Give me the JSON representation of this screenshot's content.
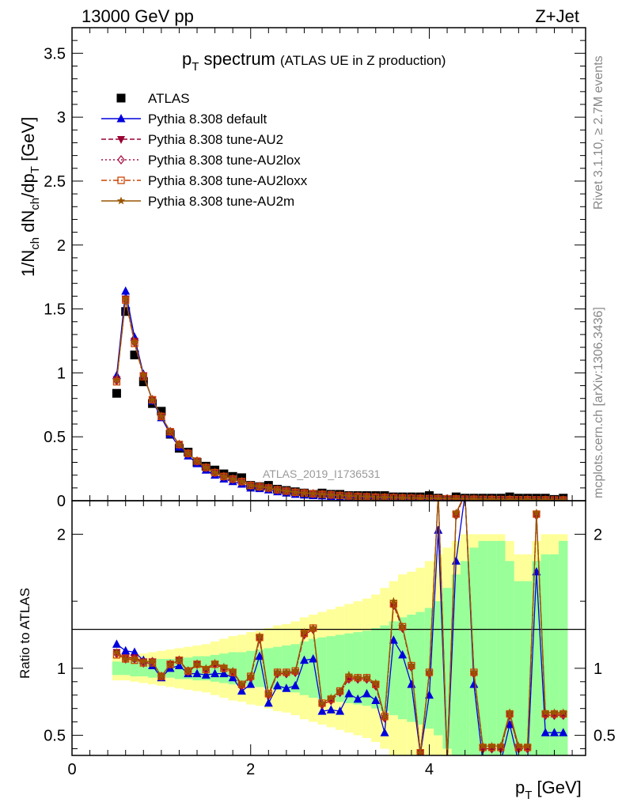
{
  "header": {
    "energy_label": "13000 GeV pp",
    "process_label": "Z+Jet"
  },
  "side_labels": {
    "rivet": "Rivet 3.1.10, ≥ 2.7M events",
    "mcplots": "mcplots.cern.ch [arXiv:1306.3436]"
  },
  "title": {
    "main": "p",
    "main_sub": "T",
    "main_rest": " spectrum",
    "note": "(ATLAS UE in Z production)"
  },
  "analysis_label": "ATLAS_2019_I1736531",
  "axes": {
    "y_top_label": "1/N_ch dN_ch/dp_T [GeV]",
    "y_bottom_label": "Ratio to ATLAS",
    "x_label": "p_T [GeV]"
  },
  "legend": [
    {
      "label": "ATLAS",
      "color": "#000000",
      "marker": "square",
      "dash": "none"
    },
    {
      "label": "Pythia 8.308 default",
      "color": "#0000dd",
      "marker": "triangle-up",
      "dash": "solid"
    },
    {
      "label": "Pythia 8.308 tune-AU2",
      "color": "#990033",
      "marker": "triangle-down",
      "dash": "dashed"
    },
    {
      "label": "Pythia 8.308 tune-AU2lox",
      "color": "#aa1144",
      "marker": "diamond-open",
      "dash": "dotted"
    },
    {
      "label": "Pythia 8.308 tune-AU2loxx",
      "color": "#cc4400",
      "marker": "square-open",
      "dash": "dashdot"
    },
    {
      "label": "Pythia 8.308 tune-AU2m",
      "color": "#995500",
      "marker": "star",
      "dash": "solid"
    }
  ],
  "chart_data": {
    "type": "line",
    "top_panel": {
      "xlim": [
        0,
        5.75
      ],
      "ylim": [
        0,
        3.7
      ],
      "x_ticks": [
        0,
        2,
        4
      ],
      "y_ticks": [
        0,
        0.5,
        1,
        1.5,
        2,
        2.5,
        3,
        3.5
      ],
      "x": [
        0.5,
        0.6,
        0.7,
        0.8,
        0.9,
        1.0,
        1.1,
        1.2,
        1.3,
        1.4,
        1.5,
        1.6,
        1.7,
        1.8,
        1.9,
        2.0,
        2.1,
        2.2,
        2.3,
        2.4,
        2.5,
        2.6,
        2.7,
        2.8,
        2.9,
        3.0,
        3.1,
        3.2,
        3.3,
        3.4,
        3.5,
        3.6,
        3.7,
        3.8,
        3.9,
        4.0,
        4.1,
        4.2,
        4.3,
        4.4,
        4.5,
        4.6,
        4.7,
        4.8,
        4.9,
        5.0,
        5.1,
        5.2,
        5.3,
        5.4,
        5.5
      ],
      "series": [
        {
          "name": "ATLAS",
          "values": [
            0.84,
            1.48,
            1.14,
            0.93,
            0.76,
            0.7,
            0.52,
            0.41,
            0.38,
            0.3,
            0.27,
            0.24,
            0.21,
            0.19,
            0.18,
            0.12,
            0.11,
            0.12,
            0.09,
            0.08,
            0.07,
            0.06,
            0.05,
            0.06,
            0.05,
            0.05,
            0.04,
            0.04,
            0.04,
            0.04,
            0.04,
            0.03,
            0.03,
            0.03,
            0.03,
            0.04,
            0.02,
            0.01,
            0.03,
            0.02,
            0.02,
            0.02,
            0.02,
            0.02,
            0.03,
            0.02,
            0.02,
            0.02,
            0.02,
            0.01,
            0.02
          ]
        },
        {
          "name": "Pythia 8.308 default",
          "values": [
            0.98,
            1.64,
            1.28,
            0.99,
            0.78,
            0.65,
            0.52,
            0.42,
            0.35,
            0.29,
            0.24,
            0.2,
            0.17,
            0.15,
            0.13,
            0.1,
            0.095,
            0.085,
            0.07,
            0.06,
            0.05,
            0.045,
            0.04,
            0.038,
            0.034,
            0.03,
            0.027,
            0.024,
            0.022,
            0.02,
            0.018,
            0.016,
            0.015,
            0.013,
            0.012,
            0.011,
            0.01,
            0.009,
            0.008,
            0.008,
            0.007,
            0.006,
            0.006,
            0.005,
            0.005,
            0.005,
            0.004,
            0.004,
            0.004,
            0.003,
            0.003
          ]
        },
        {
          "name": "Pythia 8.308 tune-AU2",
          "values": [
            0.95,
            1.58,
            1.25,
            0.98,
            0.79,
            0.66,
            0.54,
            0.44,
            0.37,
            0.31,
            0.26,
            0.22,
            0.19,
            0.17,
            0.15,
            0.12,
            0.11,
            0.1,
            0.085,
            0.075,
            0.065,
            0.06,
            0.055,
            0.05,
            0.045,
            0.04,
            0.037,
            0.034,
            0.031,
            0.028,
            0.026,
            0.024,
            0.022,
            0.02,
            0.018,
            0.017,
            0.016,
            0.015,
            0.014,
            0.013,
            0.012,
            0.011,
            0.01,
            0.0095,
            0.009,
            0.0085,
            0.008,
            0.0075,
            0.007,
            0.0065,
            0.006
          ]
        },
        {
          "name": "Pythia 8.308 tune-AU2lox",
          "values": [
            0.94,
            1.57,
            1.24,
            0.98,
            0.79,
            0.66,
            0.54,
            0.44,
            0.37,
            0.31,
            0.26,
            0.22,
            0.19,
            0.17,
            0.15,
            0.12,
            0.11,
            0.1,
            0.085,
            0.075,
            0.066,
            0.06,
            0.055,
            0.05,
            0.045,
            0.04,
            0.037,
            0.034,
            0.031,
            0.028,
            0.026,
            0.024,
            0.022,
            0.02,
            0.018,
            0.017,
            0.016,
            0.015,
            0.014,
            0.013,
            0.012,
            0.011,
            0.01,
            0.0095,
            0.009,
            0.0085,
            0.008,
            0.0075,
            0.007,
            0.0065,
            0.006
          ]
        },
        {
          "name": "Pythia 8.308 tune-AU2loxx",
          "values": [
            0.93,
            1.57,
            1.23,
            0.97,
            0.79,
            0.66,
            0.54,
            0.44,
            0.37,
            0.31,
            0.26,
            0.22,
            0.19,
            0.17,
            0.15,
            0.12,
            0.11,
            0.1,
            0.086,
            0.076,
            0.066,
            0.06,
            0.055,
            0.05,
            0.046,
            0.041,
            0.037,
            0.034,
            0.031,
            0.028,
            0.026,
            0.024,
            0.022,
            0.02,
            0.018,
            0.017,
            0.016,
            0.015,
            0.014,
            0.013,
            0.012,
            0.011,
            0.01,
            0.0095,
            0.009,
            0.0085,
            0.008,
            0.0075,
            0.007,
            0.0065,
            0.006
          ]
        },
        {
          "name": "Pythia 8.308 tune-AU2m",
          "values": [
            0.94,
            1.58,
            1.24,
            0.98,
            0.79,
            0.66,
            0.54,
            0.44,
            0.37,
            0.31,
            0.26,
            0.22,
            0.19,
            0.17,
            0.15,
            0.12,
            0.11,
            0.1,
            0.086,
            0.076,
            0.066,
            0.06,
            0.055,
            0.05,
            0.046,
            0.041,
            0.037,
            0.034,
            0.031,
            0.028,
            0.026,
            0.024,
            0.022,
            0.02,
            0.018,
            0.017,
            0.016,
            0.015,
            0.014,
            0.013,
            0.012,
            0.011,
            0.01,
            0.0095,
            0.009,
            0.0085,
            0.008,
            0.0075,
            0.007,
            0.0065,
            0.006
          ]
        }
      ]
    },
    "ratio_panel": {
      "xlim": [
        0,
        5.75
      ],
      "ylim": [
        0.35,
        2.25
      ],
      "y_ticks": [
        0.5,
        1,
        2
      ],
      "reference": 1,
      "band_inner_halfwidth": [
        0.05,
        0.05,
        0.06,
        0.06,
        0.07,
        0.07,
        0.07,
        0.08,
        0.08,
        0.09,
        0.09,
        0.1,
        0.11,
        0.12,
        0.12,
        0.13,
        0.14,
        0.15,
        0.16,
        0.17,
        0.18,
        0.2,
        0.22,
        0.23,
        0.24,
        0.25,
        0.26,
        0.27,
        0.28,
        0.3,
        0.32,
        0.35,
        0.38,
        0.4,
        0.42,
        0.45,
        0.5,
        0.6,
        0.7,
        0.8,
        0.9,
        0.95,
        0.95,
        0.95,
        0.8,
        0.65,
        0.65,
        0.8,
        0.85,
        0.85,
        0.95
      ],
      "band_outer_halfwidth": [
        0.09,
        0.09,
        0.1,
        0.11,
        0.12,
        0.13,
        0.14,
        0.15,
        0.16,
        0.17,
        0.18,
        0.2,
        0.22,
        0.24,
        0.25,
        0.27,
        0.28,
        0.3,
        0.32,
        0.33,
        0.35,
        0.38,
        0.4,
        0.42,
        0.44,
        0.46,
        0.48,
        0.5,
        0.52,
        0.55,
        0.6,
        0.65,
        0.7,
        0.72,
        0.75,
        0.8,
        0.85,
        0.9,
        0.95,
        1.0,
        1.0,
        1.0,
        1.0,
        1.0,
        0.95,
        0.85,
        0.85,
        0.95,
        1.0,
        1.0,
        1.0
      ],
      "series": [
        {
          "name": "Pythia 8.308 default",
          "values": [
            1.18,
            1.13,
            1.12,
            1.06,
            1.02,
            0.93,
            1.0,
            1.02,
            0.96,
            0.96,
            0.95,
            0.96,
            0.96,
            0.93,
            0.83,
            0.88,
            1.09,
            0.74,
            0.87,
            0.85,
            0.87,
            1.06,
            1.07,
            0.68,
            0.69,
            0.68,
            0.81,
            0.77,
            0.81,
            0.76,
            0.52,
            1.21,
            1.1,
            0.88,
            0.36,
            0.8,
            2.03,
            0.3,
            1.8,
            2.3,
            0.88,
            0.3,
            0.3,
            0.3,
            0.58,
            0.3,
            0.3,
            1.72,
            0.52,
            0.52,
            0.52
          ]
        },
        {
          "name": "Pythia 8.308 tune-AU2",
          "values": [
            1.12,
            1.08,
            1.08,
            1.05,
            1.05,
            0.94,
            1.03,
            1.06,
            0.97,
            1.03,
            0.99,
            1.03,
            1.0,
            0.97,
            0.87,
            0.93,
            1.22,
            0.8,
            0.96,
            0.96,
            0.97,
            1.25,
            1.29,
            0.73,
            0.76,
            0.82,
            0.92,
            0.92,
            0.92,
            0.87,
            0.63,
            1.47,
            1.3,
            1.01,
            0.37,
            0.96,
            2.3,
            0.32,
            2.14,
            2.3,
            0.96,
            0.4,
            0.4,
            0.4,
            0.65,
            0.4,
            0.4,
            2.14,
            0.65,
            0.65,
            0.65
          ]
        },
        {
          "name": "Pythia 8.308 tune-AU2lox",
          "values": [
            1.11,
            1.07,
            1.07,
            1.04,
            1.05,
            0.94,
            1.03,
            1.06,
            0.98,
            1.03,
            0.99,
            1.03,
            1.0,
            0.97,
            0.87,
            0.93,
            1.22,
            0.8,
            0.96,
            0.96,
            0.97,
            1.25,
            1.29,
            0.73,
            0.76,
            0.82,
            0.92,
            0.92,
            0.92,
            0.87,
            0.63,
            1.47,
            1.3,
            1.01,
            0.37,
            0.96,
            2.3,
            0.32,
            2.14,
            2.3,
            0.96,
            0.4,
            0.4,
            0.4,
            0.65,
            0.4,
            0.4,
            2.14,
            0.65,
            0.65,
            0.65
          ]
        },
        {
          "name": "Pythia 8.308 tune-AU2loxx",
          "values": [
            1.1,
            1.07,
            1.06,
            1.04,
            1.04,
            0.94,
            1.03,
            1.06,
            0.98,
            1.03,
            0.99,
            1.03,
            1.0,
            0.97,
            0.88,
            0.94,
            1.23,
            0.81,
            0.97,
            0.97,
            0.98,
            1.26,
            1.3,
            0.74,
            0.77,
            0.83,
            0.93,
            0.93,
            0.93,
            0.88,
            0.64,
            1.48,
            1.31,
            1.02,
            0.37,
            0.97,
            2.3,
            0.32,
            2.15,
            2.3,
            0.97,
            0.41,
            0.41,
            0.41,
            0.66,
            0.41,
            0.41,
            2.15,
            0.66,
            0.66,
            0.66
          ]
        },
        {
          "name": "Pythia 8.308 tune-AU2m",
          "values": [
            1.12,
            1.07,
            1.07,
            1.05,
            1.05,
            0.94,
            1.03,
            1.06,
            0.98,
            1.03,
            1.0,
            1.04,
            1.01,
            0.98,
            0.88,
            0.94,
            1.24,
            0.81,
            0.97,
            0.97,
            0.98,
            1.27,
            1.3,
            0.74,
            0.78,
            0.83,
            0.95,
            0.93,
            0.93,
            0.89,
            0.64,
            1.5,
            1.31,
            1.02,
            0.37,
            0.97,
            2.3,
            0.33,
            2.16,
            2.3,
            0.97,
            0.42,
            0.42,
            0.42,
            0.67,
            0.42,
            0.42,
            2.16,
            0.67,
            0.67,
            0.67
          ]
        }
      ]
    },
    "x_ticks": [
      0,
      2,
      4
    ],
    "grid": false,
    "legend_position": "top-left"
  }
}
